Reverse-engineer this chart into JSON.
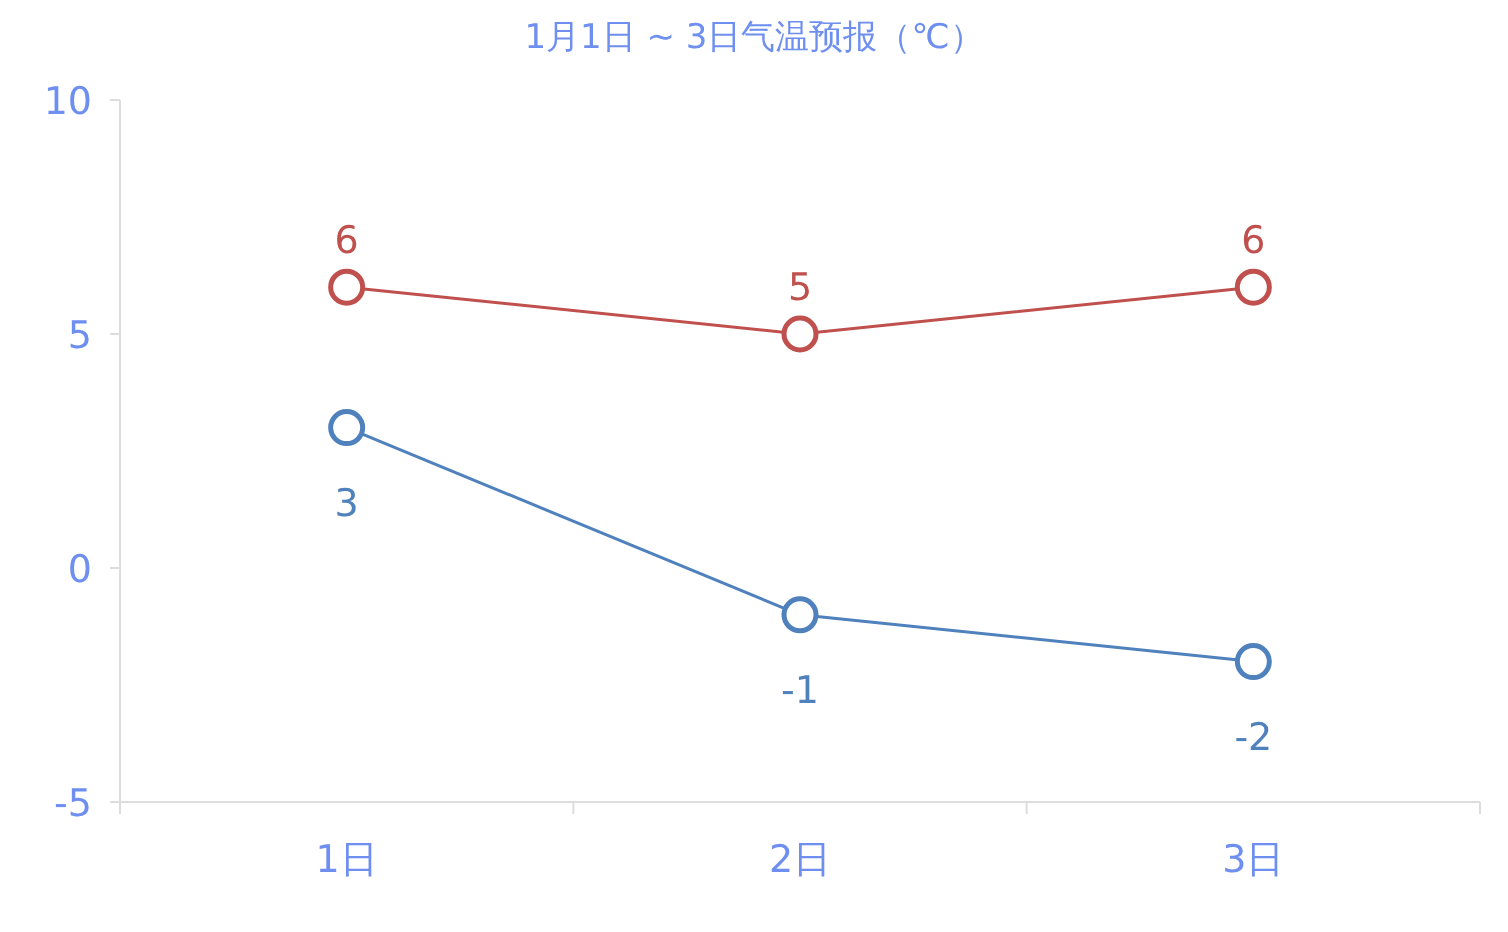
{
  "chart_data": {
    "type": "line",
    "title": "1月1日 ~ 3日气温预报（℃）",
    "categories": [
      "1日",
      "2日",
      "3日"
    ],
    "series": [
      {
        "color": "#c0504d",
        "values": [
          6,
          5,
          6
        ]
      },
      {
        "color": "#4f81bd",
        "values": [
          3,
          -1,
          -2
        ]
      }
    ],
    "ylim": [
      -5,
      10
    ],
    "yticks": [
      -5,
      0,
      5,
      10
    ],
    "data_labels": true,
    "marker": "circle",
    "line_style": "solid"
  }
}
